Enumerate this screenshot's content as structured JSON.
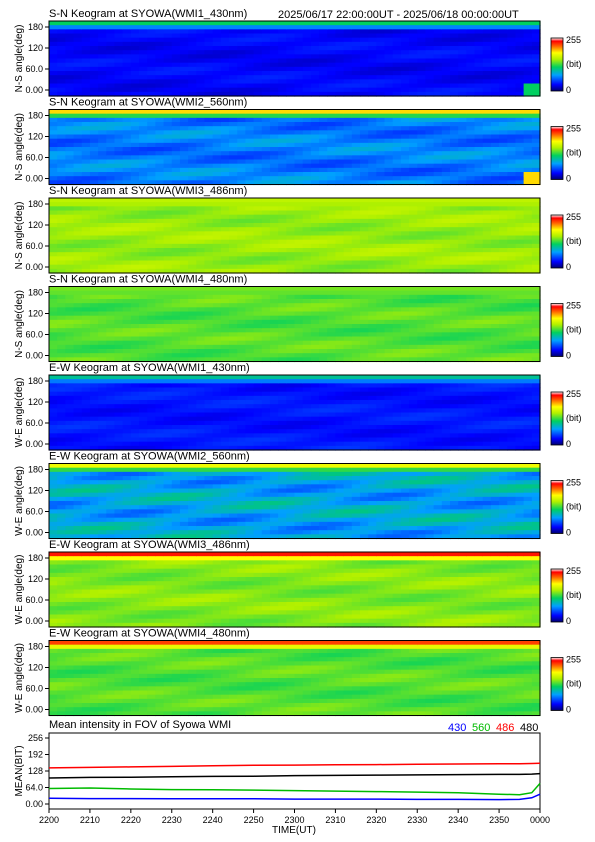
{
  "header": {
    "time_range": "2025/06/17 22:00:00UT - 2025/06/18 00:00:00UT"
  },
  "colors": {
    "c430": "#0000ff",
    "c560": "#00bb00",
    "c486": "#ff0000",
    "c480": "#000000"
  },
  "colorbar": {
    "max_label": "255",
    "unit_label": "(bit)",
    "min_label": "0"
  },
  "keograms": [
    {
      "title": "S-N Keogram at SYOWA(WMI1_430nm)",
      "ylabel": "N-S angle(deg)",
      "yticks": [
        "180",
        "120",
        "60.0",
        "0.00"
      ],
      "base": 0.12,
      "var": 0.04,
      "edge": 0.45
    },
    {
      "title": "S-N Keogram at SYOWA(WMI2_560nm)",
      "ylabel": "N-S angle(deg)",
      "yticks": [
        "180",
        "120",
        "60.0",
        "0.00"
      ],
      "base": 0.26,
      "var": 0.08,
      "edge": 0.75
    },
    {
      "title": "S-N Keogram at SYOWA(WMI3_486nm)",
      "ylabel": "N-S angle(deg)",
      "yticks": [
        "180",
        "120",
        "60.0",
        "0.00"
      ],
      "base": 0.58,
      "var": 0.05,
      "edge": 0.62
    },
    {
      "title": "S-N Keogram at SYOWA(WMI4_480nm)",
      "ylabel": "N-S angle(deg)",
      "yticks": [
        "180",
        "120",
        "60.0",
        "0.00"
      ],
      "base": 0.52,
      "var": 0.05,
      "edge": 0.55
    },
    {
      "title": "E-W Keogram at SYOWA(WMI1_430nm)",
      "ylabel": "W-E angle(deg)",
      "yticks": [
        "180",
        "120",
        "60.0",
        "0.00"
      ],
      "base": 0.14,
      "var": 0.04,
      "edge": 0.4
    },
    {
      "title": "E-W Keogram at SYOWA(WMI2_560nm)",
      "ylabel": "W-E angle(deg)",
      "yticks": [
        "180",
        "120",
        "60.0",
        "0.00"
      ],
      "base": 0.32,
      "var": 0.1,
      "edge": 0.7
    },
    {
      "title": "E-W Keogram at SYOWA(WMI3_486nm)",
      "ylabel": "W-E angle(deg)",
      "yticks": [
        "180",
        "120",
        "60.0",
        "0.00"
      ],
      "base": 0.56,
      "var": 0.05,
      "edge": 0.92
    },
    {
      "title": "E-W Keogram at SYOWA(WMI4_480nm)",
      "ylabel": "W-E angle(deg)",
      "yticks": [
        "180",
        "120",
        "60.0",
        "0.00"
      ],
      "base": 0.52,
      "var": 0.05,
      "edge": 0.88
    }
  ],
  "chart_data": {
    "type": "line",
    "title": "Mean intensity in FOV of Syowa WMI",
    "xlabel": "TIME(UT)",
    "ylabel": "MEAN(BIT)",
    "xticks": [
      "2200",
      "2210",
      "2220",
      "2230",
      "2240",
      "2250",
      "2300",
      "2310",
      "2320",
      "2330",
      "2340",
      "2350",
      "0000"
    ],
    "yticks": [
      "256",
      "192",
      "128",
      "64.0",
      "0.00"
    ],
    "xlim": [
      0,
      120
    ],
    "ylim": [
      0,
      256
    ],
    "x": [
      0,
      10,
      20,
      30,
      40,
      50,
      60,
      70,
      80,
      90,
      100,
      110,
      115,
      118,
      120
    ],
    "series": [
      {
        "name": "430",
        "color": "#0000ff",
        "values": [
          22,
          21,
          21,
          20,
          20,
          20,
          19,
          19,
          19,
          18,
          18,
          17,
          18,
          24,
          38
        ]
      },
      {
        "name": "560",
        "color": "#00bb00",
        "values": [
          60,
          62,
          58,
          56,
          55,
          54,
          52,
          50,
          48,
          46,
          44,
          38,
          36,
          44,
          80
        ]
      },
      {
        "name": "486",
        "color": "#ff0000",
        "values": [
          140,
          142,
          144,
          146,
          148,
          150,
          151,
          152,
          153,
          154,
          155,
          156,
          156,
          157,
          158
        ]
      },
      {
        "name": "480",
        "color": "#000000",
        "values": [
          101,
          103,
          104,
          106,
          107,
          108,
          110,
          111,
          112,
          113,
          114,
          115,
          115,
          116,
          118
        ]
      }
    ]
  }
}
